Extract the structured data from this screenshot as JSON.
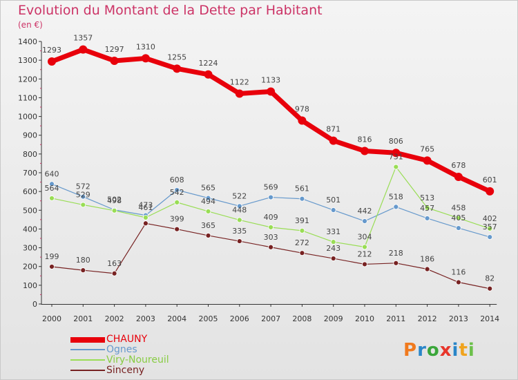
{
  "title": "Evolution du Montant de la Dette par Habitant",
  "subtitle": "(en €)",
  "logo": {
    "letters": [
      "P",
      "r",
      "o",
      "x",
      "i",
      "t",
      "i"
    ],
    "colors": [
      "#f07a1e",
      "#2a86c8",
      "#3aa63a",
      "#e8352a",
      "#2a86c8",
      "#f0a31e",
      "#6cc04a"
    ]
  },
  "chart_data": {
    "type": "line",
    "title": "Evolution du Montant de la Dette par Habitant",
    "ylabel": "(en €)",
    "xlabel": "",
    "x": [
      "2000",
      "2001",
      "2002",
      "2003",
      "2004",
      "2005",
      "2006",
      "2007",
      "2008",
      "2009",
      "2010",
      "2011",
      "2012",
      "2013",
      "2014"
    ],
    "ylim": [
      0,
      1400
    ],
    "yticks": [
      "0",
      "100",
      "200",
      "300",
      "400",
      "500",
      "600",
      "700",
      "800",
      "900",
      "1000",
      "1100",
      "1200",
      "1300",
      "1400"
    ],
    "grid": false,
    "legend": "bottom-left",
    "series": [
      {
        "name": "CHAUNY",
        "color": "#e8000b",
        "values": [
          1293,
          1357,
          1297,
          1310,
          1255,
          1224,
          1122,
          1133,
          978,
          871,
          816,
          806,
          765,
          678,
          601
        ],
        "labels": [
          "1293",
          "1357",
          "1297",
          "1310",
          "1255",
          "1224",
          "1122",
          "1133",
          "978",
          "871",
          "816",
          "806",
          "765",
          "678",
          "601"
        ]
      },
      {
        "name": "Ognes",
        "color": "#6699cc",
        "values": [
          640,
          572,
          502,
          473,
          608,
          565,
          522,
          569,
          561,
          501,
          442,
          518,
          457,
          405,
          357
        ],
        "labels": [
          "640",
          "572",
          "502",
          "473",
          "608",
          "565",
          "522",
          "569",
          "561",
          "501",
          "442",
          "518",
          "457",
          "405",
          "357"
        ]
      },
      {
        "name": "Viry-Noureuil",
        "color": "#99dd55",
        "values": [
          564,
          529,
          498,
          461,
          542,
          494,
          448,
          409,
          391,
          331,
          304,
          731,
          513,
          458,
          402
        ],
        "labels": [
          "564",
          "529",
          "498",
          "461",
          "542",
          "494",
          "448",
          "409",
          "391",
          "331",
          "304",
          "731",
          "513",
          "458",
          "402"
        ]
      },
      {
        "name": "Sinceny",
        "color": "#772222",
        "values": [
          199,
          180,
          163,
          430,
          399,
          365,
          335,
          303,
          272,
          243,
          212,
          218,
          186,
          116,
          82
        ],
        "labels": [
          "199",
          "180",
          "163",
          "",
          "399",
          "365",
          "335",
          "303",
          "272",
          "243",
          "212",
          "218",
          "186",
          "116",
          "82"
        ]
      }
    ]
  }
}
